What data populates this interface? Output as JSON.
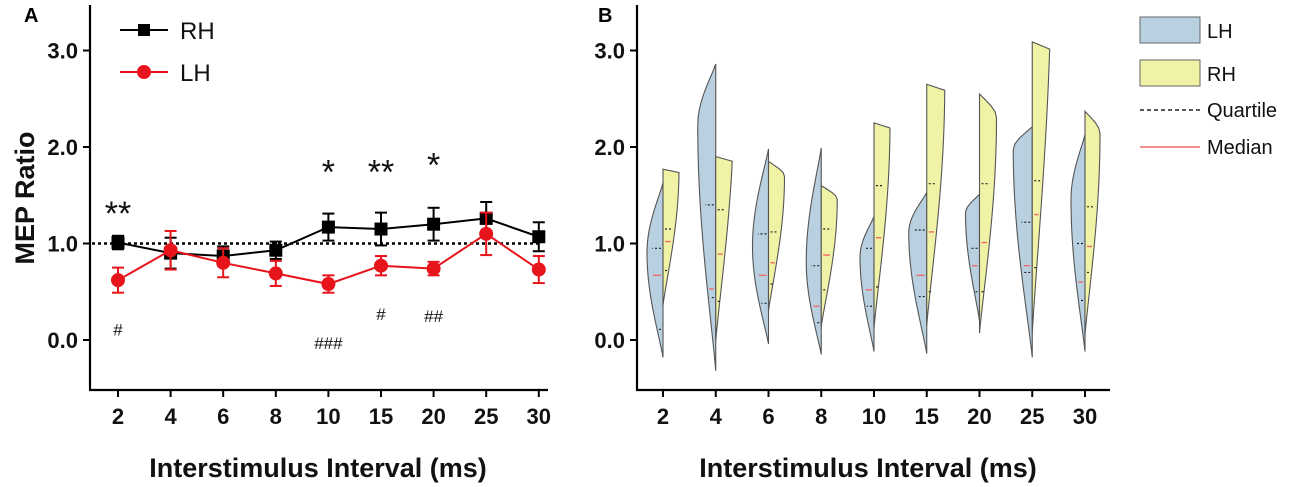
{
  "chart_data": [
    {
      "panel": "A",
      "type": "line",
      "categories": [
        "2",
        "4",
        "6",
        "8",
        "10",
        "15",
        "20",
        "25",
        "30"
      ],
      "xlabel": "Interstimulus Interval (ms)",
      "ylabel": "MEP Ratio",
      "yticks": [
        "0.0",
        "1.0",
        "2.0",
        "3.0"
      ],
      "ylim": [
        -0.5,
        3.5
      ],
      "reference_line": 1.0,
      "series": [
        {
          "name": "RH",
          "color": "#000000",
          "marker": "square",
          "values": [
            1.01,
            0.9,
            0.87,
            0.93,
            1.17,
            1.15,
            1.2,
            1.26,
            1.07
          ],
          "errors": [
            0.07,
            0.16,
            0.1,
            0.09,
            0.14,
            0.17,
            0.17,
            0.17,
            0.15
          ]
        },
        {
          "name": "LH",
          "color": "#e8141b",
          "marker": "circle",
          "values": [
            0.62,
            0.93,
            0.8,
            0.69,
            0.58,
            0.77,
            0.74,
            1.1,
            0.73
          ],
          "errors": [
            0.13,
            0.2,
            0.15,
            0.13,
            0.09,
            0.1,
            0.07,
            0.22,
            0.14
          ]
        }
      ],
      "annotations": [
        {
          "text": "**",
          "category": "2",
          "y": 1.42
        },
        {
          "text": "*",
          "category": "10",
          "y": 1.85
        },
        {
          "text": "**",
          "category": "15",
          "y": 1.85
        },
        {
          "text": "*",
          "category": "20",
          "y": 1.92
        },
        {
          "text": "#",
          "category": "2",
          "y": 0.11
        },
        {
          "text": "###",
          "category": "10",
          "y": -0.03
        },
        {
          "text": "#",
          "category": "15",
          "y": 0.27
        },
        {
          "text": "##",
          "category": "20",
          "y": 0.25
        }
      ]
    },
    {
      "panel": "B",
      "type": "violin",
      "categories": [
        "2",
        "4",
        "6",
        "8",
        "10",
        "15",
        "20",
        "25",
        "30"
      ],
      "xlabel": "Interstimulus Interval (ms)",
      "yticks": [
        "0.0",
        "1.0",
        "2.0",
        "3.0"
      ],
      "ylim": [
        -0.5,
        3.5
      ],
      "series": [
        {
          "name": "LH",
          "side": "left",
          "fill": "#b9d0e0",
          "min": [
            -0.18,
            -0.32,
            -0.04,
            -0.15,
            -0.12,
            -0.14,
            0.2,
            -0.18,
            -0.12
          ],
          "max": [
            1.63,
            2.86,
            1.98,
            1.99,
            1.28,
            1.53,
            1.51,
            2.21,
            2.13
          ],
          "peak": [
            0.6,
            0.8,
            0.5,
            0.45,
            0.7,
            0.75,
            0.85,
            0.9,
            0.7
          ],
          "q1": [
            0.11,
            0.44,
            0.38,
            0.18,
            0.35,
            0.45,
            0.5,
            0.7,
            0.41
          ],
          "median": [
            0.67,
            0.53,
            0.67,
            0.35,
            0.52,
            0.67,
            0.77,
            0.77,
            0.6
          ],
          "q3": [
            0.95,
            1.4,
            1.1,
            0.77,
            0.95,
            1.14,
            0.95,
            1.22,
            1.0
          ],
          "width": [
            16,
            18,
            16,
            15,
            14,
            18,
            14,
            19,
            14
          ]
        },
        {
          "name": "RH",
          "side": "right",
          "fill": "#f0f2a6",
          "min": [
            0.36,
            -0.01,
            0.3,
            0.14,
            0.12,
            0.15,
            0.07,
            0.07,
            0.05
          ],
          "max": [
            1.77,
            1.9,
            1.85,
            1.6,
            2.25,
            2.65,
            2.55,
            3.09,
            2.37
          ],
          "peak": [
            1.0,
            1.3,
            0.9,
            0.9,
            1.0,
            1.0,
            0.9,
            1.3,
            0.9
          ],
          "q1": [
            0.72,
            0.4,
            0.58,
            0.52,
            0.55,
            0.5,
            0.5,
            0.75,
            0.7
          ],
          "median": [
            1.02,
            0.89,
            0.8,
            0.88,
            1.06,
            1.12,
            1.01,
            1.3,
            0.97
          ],
          "q3": [
            1.15,
            1.35,
            1.12,
            1.15,
            1.6,
            1.62,
            1.62,
            1.65,
            1.38
          ],
          "width": [
            16,
            18,
            16,
            16,
            16,
            18,
            17,
            19,
            15
          ]
        }
      ],
      "quartile_color": "#222222",
      "median_color": "#ef6b6b"
    }
  ],
  "legend_a": [
    {
      "label": "RH",
      "color": "#000000",
      "marker": "square"
    },
    {
      "label": "LH",
      "color": "#e8141b",
      "marker": "circle"
    }
  ],
  "legend_b": [
    {
      "label": "LH",
      "kind": "swatch",
      "color": "#b9d0e0"
    },
    {
      "label": "RH",
      "kind": "swatch",
      "color": "#f0f2a6"
    },
    {
      "label": "Quartile",
      "kind": "dash",
      "color": "#222222"
    },
    {
      "label": "Median",
      "kind": "line",
      "color": "#ef6b6b"
    }
  ]
}
